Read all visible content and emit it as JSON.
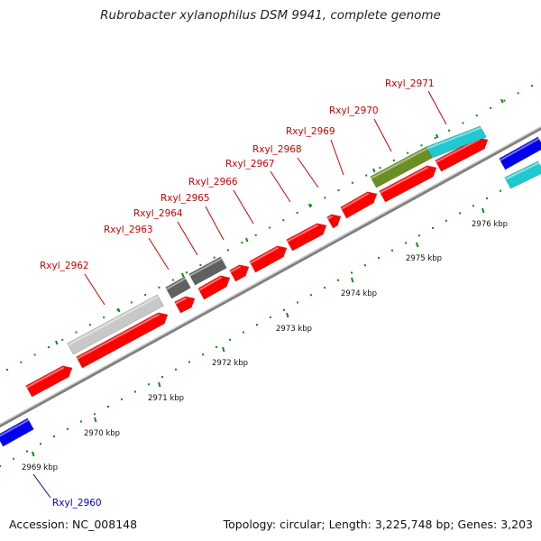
{
  "header": {
    "title": "Rubrobacter xylanophilus DSM 9941, complete genome"
  },
  "footer": {
    "accession": "Accession: NC_008148",
    "topology": "Topology: circular; Length: 3,225,748 bp; Genes: 3,203"
  },
  "colors": {
    "backbone": "#808080",
    "cds_forward": "#ff0000",
    "rna_gray": "#c8c8c8",
    "rna_dark": "#606060",
    "olive": "#6b8e23",
    "cyan": "#20c8d0",
    "blue": "#0000ee",
    "tick": "#0a8a0a",
    "label_red": "#cc0000",
    "label_blue": "#0000cc"
  },
  "scale_ticks": [
    "2969 kbp",
    "2970 kbp",
    "2971 kbp",
    "2972 kbp",
    "2973 kbp",
    "2974 kbp",
    "2975 kbp",
    "2976 kbp"
  ],
  "gene_labels": [
    {
      "name": "Rxyl_2960",
      "color": "blue"
    },
    {
      "name": "Rxyl_2962",
      "color": "red"
    },
    {
      "name": "Rxyl_2963",
      "color": "red"
    },
    {
      "name": "Rxyl_2964",
      "color": "red"
    },
    {
      "name": "Rxyl_2965",
      "color": "red"
    },
    {
      "name": "Rxyl_2966",
      "color": "red"
    },
    {
      "name": "Rxyl_2967",
      "color": "red"
    },
    {
      "name": "Rxyl_2968",
      "color": "red"
    },
    {
      "name": "Rxyl_2969",
      "color": "red"
    },
    {
      "name": "Rxyl_2970",
      "color": "red"
    },
    {
      "name": "Rxyl_2971",
      "color": "red"
    }
  ]
}
